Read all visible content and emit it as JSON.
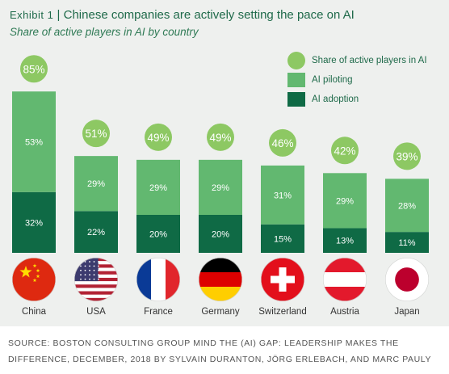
{
  "header": {
    "exhibit": "Exhibit 1",
    "separator": "|",
    "title": "Chinese companies are actively setting the pace on AI",
    "subtitle": "Share of active players in AI by country"
  },
  "legend": {
    "active": "Share of active players in AI",
    "piloting": "AI piloting",
    "adoption": "AI adoption"
  },
  "colors": {
    "piloting": "#62b870",
    "adoption": "#0f6a45",
    "total_circle": "#8dc863"
  },
  "flag_icons": [
    "china-flag-icon",
    "usa-flag-icon",
    "france-flag-icon",
    "germany-flag-icon",
    "switzerland-flag-icon",
    "austria-flag-icon",
    "japan-flag-icon"
  ],
  "chart_data": {
    "type": "bar",
    "stacked": true,
    "categories": [
      "China",
      "USA",
      "France",
      "Germany",
      "Switzerland",
      "Austria",
      "Japan"
    ],
    "series": [
      {
        "name": "AI adoption",
        "values": [
          32,
          22,
          20,
          20,
          15,
          13,
          11
        ],
        "labels": [
          "32%",
          "22%",
          "20%",
          "20%",
          "15%",
          "13%",
          "11%"
        ]
      },
      {
        "name": "AI piloting",
        "values": [
          53,
          29,
          29,
          29,
          31,
          29,
          28
        ],
        "labels": [
          "53%",
          "29%",
          "29%",
          "29%",
          "31%",
          "29%",
          "28%"
        ]
      }
    ],
    "totals": [
      85,
      51,
      49,
      49,
      46,
      42,
      39
    ],
    "total_labels": [
      "85%",
      "51%",
      "49%",
      "49%",
      "46%",
      "42%",
      "39%"
    ],
    "legend_position": "top-right",
    "grid": false
  },
  "source": "SOURCE: BOSTON CONSULTING GROUP MIND THE (AI) GAP: LEADERSHIP MAKES THE DIFFERENCE, DECEMBER, 2018 BY SYLVAIN DURANTON, JÖRG ERLEBACH, AND MARC PAULY"
}
